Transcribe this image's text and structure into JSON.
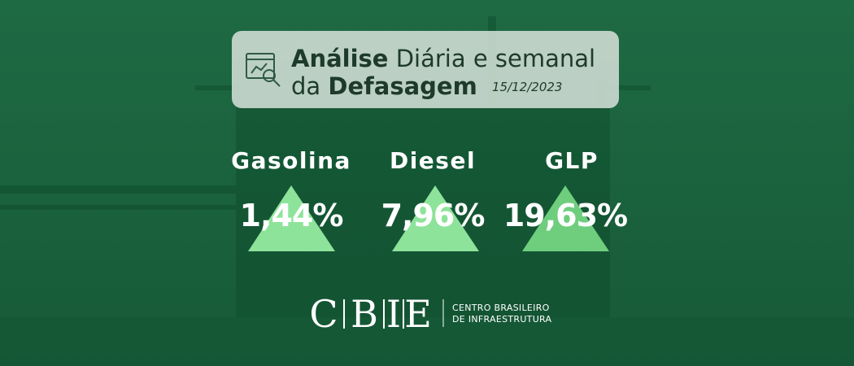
{
  "header": {
    "title_bold": "Análise",
    "title_rest": "Diária e semanal",
    "line2_prefix": "da",
    "line2_bold": "Defasagem",
    "date": "15/12/2023"
  },
  "fuels": [
    {
      "name": "Gasolina",
      "value": "1,44%"
    },
    {
      "name": "Diesel",
      "value": "7,96%"
    },
    {
      "name": "GLP",
      "value": "19,63%"
    }
  ],
  "logo": {
    "letters": [
      "C",
      "B",
      "I",
      "E"
    ],
    "line1": "CENTRO BRASILEIRO",
    "line2": "DE INFRAESTRUTURA"
  }
}
